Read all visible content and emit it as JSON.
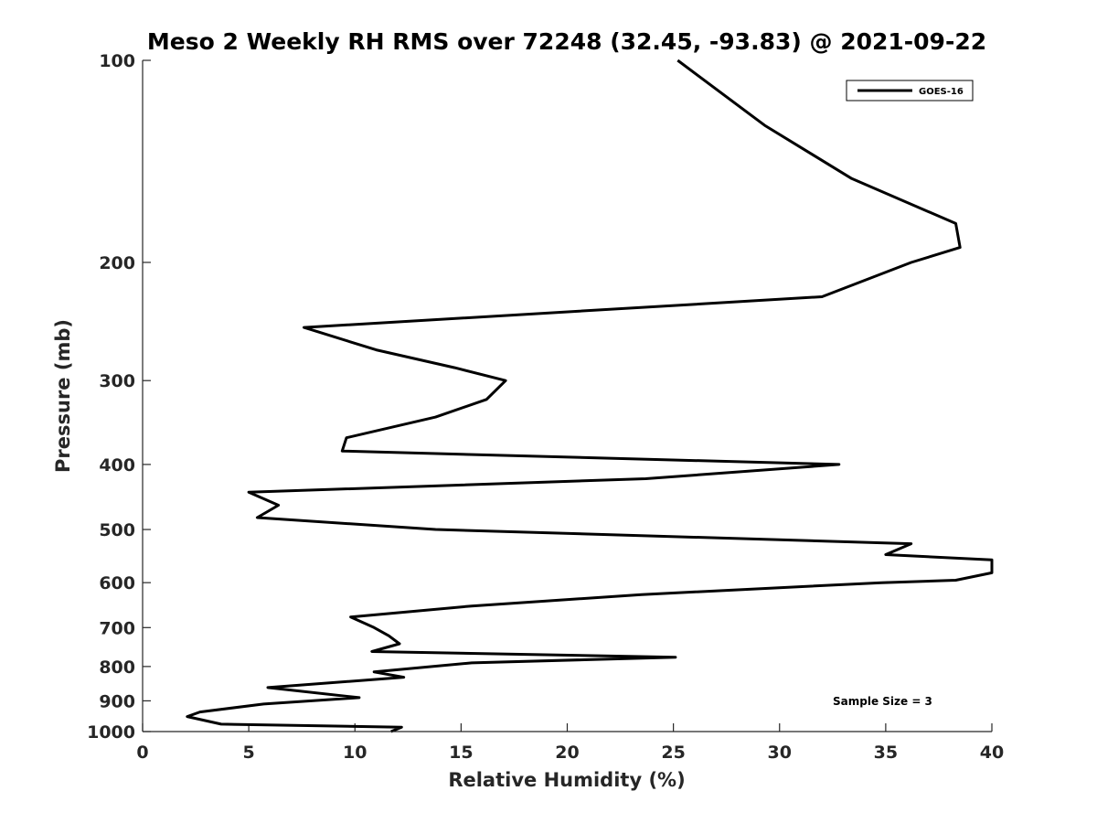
{
  "chart_data": {
    "type": "line",
    "title": "Meso 2 Weekly RH RMS over 72248 (32.45, -93.83) @ 2021-09-22",
    "xlabel": "Relative Humidity (%)",
    "ylabel": "Pressure (mb)",
    "xlim": [
      0,
      40
    ],
    "ylim": [
      1000,
      100
    ],
    "yscale": "log",
    "y_reversed": true,
    "grid": false,
    "legend_position": "top-right",
    "xticks": [
      "0",
      "5",
      "10",
      "15",
      "20",
      "25",
      "30",
      "35",
      "40"
    ],
    "yticks": [
      "100",
      "200",
      "300",
      "400",
      "500",
      "600",
      "700",
      "800",
      "900",
      "1000"
    ],
    "series": [
      {
        "name": "GOES-16",
        "color": "#000000",
        "x": [
          25.2,
          29.3,
          33.4,
          38.3,
          38.5,
          36.2,
          32.0,
          7.6,
          11.0,
          14.7,
          17.1,
          16.2,
          13.8,
          9.6,
          9.4,
          32.8,
          23.7,
          5.0,
          6.4,
          5.4,
          13.8,
          36.2,
          35.0,
          40.0,
          40.0,
          38.3,
          34.8,
          23.5,
          15.5,
          9.8,
          10.9,
          11.6,
          12.1,
          10.8,
          25.1,
          15.5,
          10.9,
          12.3,
          5.9,
          10.2,
          5.7,
          2.7,
          2.1,
          3.7,
          12.2,
          11.7
        ],
        "y": [
          100,
          125,
          150,
          175,
          190,
          200,
          225,
          250,
          270,
          287,
          300,
          320,
          340,
          365,
          382,
          400,
          420,
          440,
          460,
          480,
          500,
          525,
          545,
          555,
          580,
          595,
          600,
          625,
          650,
          675,
          700,
          720,
          740,
          760,
          775,
          790,
          815,
          830,
          860,
          890,
          910,
          935,
          950,
          975,
          985,
          1000
        ]
      }
    ],
    "annotation": "Sample Size = 3"
  }
}
